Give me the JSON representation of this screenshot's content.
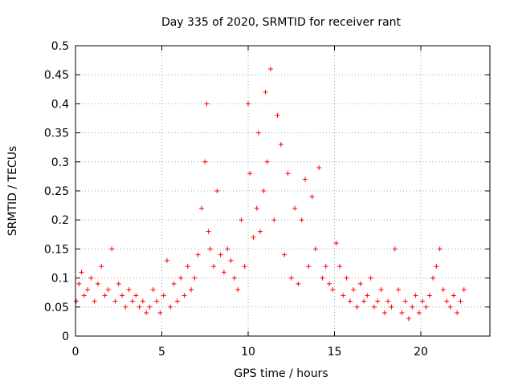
{
  "chart_data": {
    "type": "scatter",
    "title": "Day 335 of 2020, SRMTID for receiver rant",
    "xlabel": "GPS time / hours",
    "ylabel": "SRMTID / TECUs",
    "xlim": [
      0,
      24
    ],
    "ylim": [
      0,
      0.5
    ],
    "xticks": [
      0,
      5,
      10,
      15,
      20
    ],
    "xtick_labels": [
      "0",
      "5",
      "10",
      "15",
      "20"
    ],
    "yticks": [
      0,
      0.05,
      0.1,
      0.15,
      0.2,
      0.25,
      0.3,
      0.35,
      0.4,
      0.45,
      0.5
    ],
    "ytick_labels": [
      "0",
      "0.05",
      "0.1",
      "0.15",
      "0.2",
      "0.25",
      "0.3",
      "0.35",
      "0.4",
      "0.45",
      "0.5"
    ],
    "grid": true,
    "marker": "+",
    "color": "#ff0000",
    "series": [
      {
        "name": "SRMTID",
        "x": [
          0.05,
          0.2,
          0.35,
          0.5,
          0.7,
          0.9,
          1.1,
          1.3,
          1.5,
          1.7,
          1.9,
          2.1,
          2.3,
          2.5,
          2.7,
          2.9,
          3.1,
          3.3,
          3.5,
          3.7,
          3.9,
          4.1,
          4.3,
          4.5,
          4.7,
          4.9,
          5.1,
          5.3,
          5.5,
          5.7,
          5.9,
          6.1,
          6.3,
          6.5,
          6.7,
          6.9,
          7.1,
          7.3,
          7.5,
          7.6,
          7.7,
          7.8,
          8.0,
          8.2,
          8.4,
          8.6,
          8.8,
          9.0,
          9.2,
          9.4,
          9.6,
          9.8,
          10.0,
          10.1,
          10.3,
          10.5,
          10.6,
          10.7,
          10.9,
          11.0,
          11.1,
          11.3,
          11.5,
          11.7,
          11.9,
          12.1,
          12.3,
          12.5,
          12.7,
          12.9,
          13.1,
          13.3,
          13.5,
          13.7,
          13.9,
          14.1,
          14.3,
          14.5,
          14.7,
          14.9,
          15.1,
          15.3,
          15.5,
          15.7,
          15.9,
          16.1,
          16.3,
          16.5,
          16.7,
          16.9,
          17.1,
          17.3,
          17.5,
          17.7,
          17.9,
          18.1,
          18.3,
          18.5,
          18.7,
          18.9,
          19.1,
          19.3,
          19.5,
          19.7,
          19.9,
          20.1,
          20.3,
          20.5,
          20.7,
          20.9,
          21.1,
          21.3,
          21.5,
          21.7,
          21.9,
          22.1,
          22.3,
          22.5
        ],
        "y": [
          0.06,
          0.09,
          0.11,
          0.07,
          0.08,
          0.1,
          0.06,
          0.09,
          0.12,
          0.07,
          0.08,
          0.15,
          0.06,
          0.09,
          0.07,
          0.05,
          0.08,
          0.06,
          0.07,
          0.05,
          0.06,
          0.04,
          0.05,
          0.08,
          0.06,
          0.04,
          0.07,
          0.13,
          0.05,
          0.09,
          0.06,
          0.1,
          0.07,
          0.12,
          0.08,
          0.1,
          0.14,
          0.22,
          0.3,
          0.4,
          0.18,
          0.15,
          0.12,
          0.25,
          0.14,
          0.11,
          0.15,
          0.13,
          0.1,
          0.08,
          0.2,
          0.12,
          0.4,
          0.28,
          0.17,
          0.22,
          0.35,
          0.18,
          0.25,
          0.42,
          0.3,
          0.46,
          0.2,
          0.38,
          0.33,
          0.14,
          0.28,
          0.1,
          0.22,
          0.09,
          0.2,
          0.27,
          0.12,
          0.24,
          0.15,
          0.29,
          0.1,
          0.12,
          0.09,
          0.08,
          0.16,
          0.12,
          0.07,
          0.1,
          0.06,
          0.08,
          0.05,
          0.09,
          0.06,
          0.07,
          0.1,
          0.05,
          0.06,
          0.08,
          0.04,
          0.06,
          0.05,
          0.15,
          0.08,
          0.04,
          0.06,
          0.03,
          0.05,
          0.07,
          0.04,
          0.06,
          0.05,
          0.07,
          0.1,
          0.12,
          0.15,
          0.08,
          0.06,
          0.05,
          0.07,
          0.04,
          0.06,
          0.08
        ]
      }
    ]
  }
}
